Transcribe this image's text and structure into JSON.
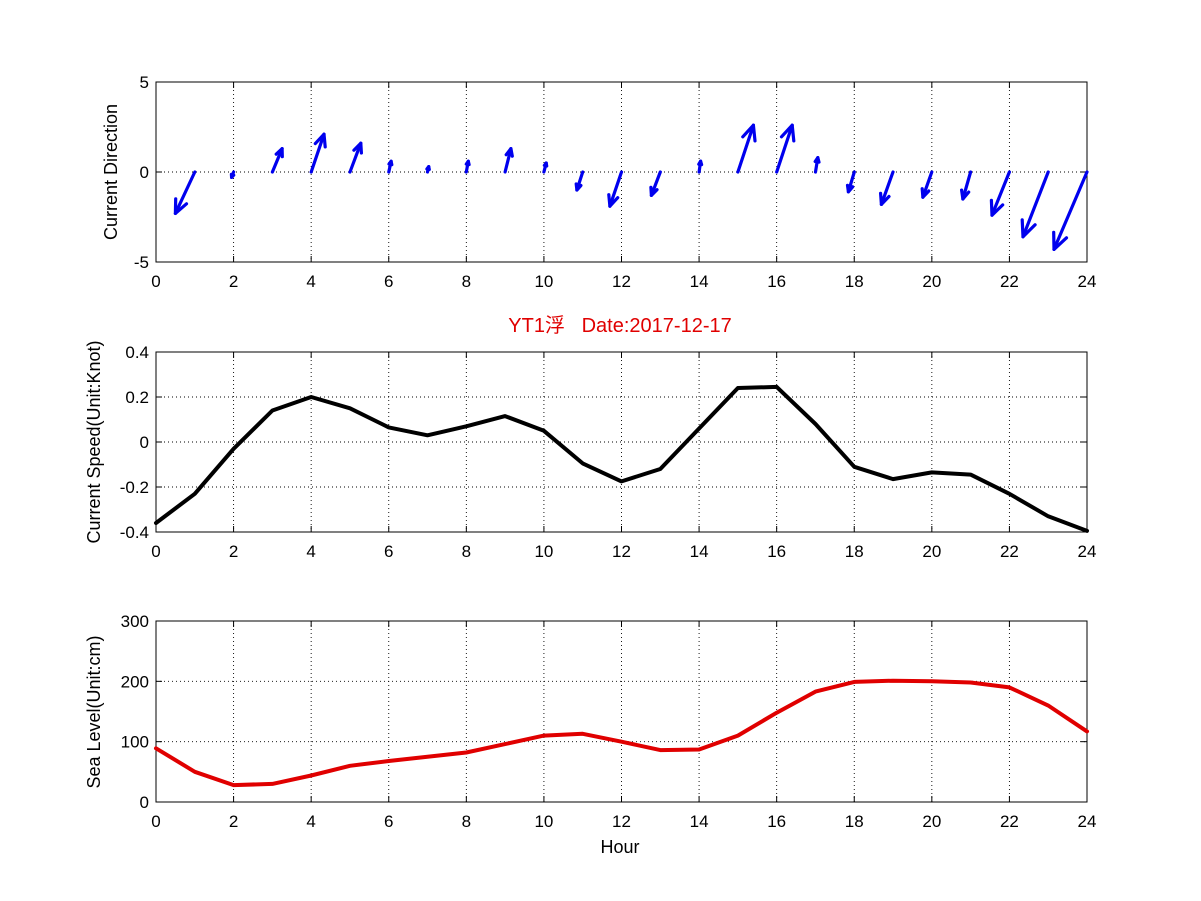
{
  "figure": {
    "background": "#ffffff",
    "title": "YT1浮   Date:2017-12-17",
    "title_color": "#e00000"
  },
  "chart_data": [
    {
      "id": "direction",
      "type": "quiver",
      "ylabel": "Current Direction",
      "xlabel": "",
      "xlim": [
        0,
        24
      ],
      "ylim": [
        -5,
        5
      ],
      "xticks": [
        0,
        2,
        4,
        6,
        8,
        10,
        12,
        14,
        16,
        18,
        20,
        22,
        24
      ],
      "yticks": [
        -5,
        0,
        5
      ],
      "grid": true,
      "color": "#0000ee",
      "x": [
        0,
        1,
        2,
        3,
        4,
        5,
        6,
        7,
        8,
        9,
        10,
        11,
        12,
        13,
        14,
        15,
        16,
        17,
        18,
        19,
        20,
        21,
        22,
        23,
        24
      ],
      "u": [
        0,
        -0.5,
        -0.05,
        0.25,
        0.33,
        0.28,
        0.06,
        0.03,
        0.05,
        0.15,
        0.06,
        -0.15,
        -0.3,
        -0.23,
        0.04,
        0.4,
        0.4,
        0.06,
        -0.15,
        -0.3,
        -0.23,
        -0.2,
        -0.45,
        -0.65,
        -0.85
      ],
      "v": [
        0,
        -2.3,
        -0.3,
        1.3,
        2.1,
        1.6,
        0.6,
        0.3,
        0.6,
        1.3,
        0.5,
        -1.0,
        -1.9,
        -1.3,
        0.6,
        2.6,
        2.6,
        0.8,
        -1.1,
        -1.8,
        -1.4,
        -1.5,
        -2.4,
        -3.6,
        -4.3
      ]
    },
    {
      "id": "speed",
      "type": "line",
      "ylabel": "Current Speed(Unit:Knot)",
      "xlabel": "",
      "xlim": [
        0,
        24
      ],
      "ylim": [
        -0.4,
        0.4
      ],
      "xticks": [
        0,
        2,
        4,
        6,
        8,
        10,
        12,
        14,
        16,
        18,
        20,
        22,
        24
      ],
      "yticks": [
        -0.4,
        -0.2,
        0,
        0.2,
        0.4
      ],
      "grid": true,
      "color": "#000000",
      "x": [
        0,
        1,
        2,
        3,
        4,
        5,
        6,
        7,
        8,
        9,
        10,
        11,
        12,
        13,
        14,
        15,
        16,
        17,
        18,
        19,
        20,
        21,
        22,
        23,
        24
      ],
      "y": [
        -0.36,
        -0.23,
        -0.03,
        0.14,
        0.2,
        0.15,
        0.065,
        0.03,
        0.07,
        0.115,
        0.05,
        -0.095,
        -0.175,
        -0.12,
        0.06,
        0.24,
        0.245,
        0.08,
        -0.11,
        -0.165,
        -0.135,
        -0.145,
        -0.23,
        -0.33,
        -0.395
      ]
    },
    {
      "id": "sealevel",
      "type": "line",
      "ylabel": "Sea Level(Unit:cm)",
      "xlabel": "Hour",
      "xlim": [
        0,
        24
      ],
      "ylim": [
        0,
        300
      ],
      "xticks": [
        0,
        2,
        4,
        6,
        8,
        10,
        12,
        14,
        16,
        18,
        20,
        22,
        24
      ],
      "yticks": [
        0,
        100,
        200,
        300
      ],
      "grid": true,
      "color": "#e00000",
      "x": [
        0,
        1,
        2,
        3,
        4,
        5,
        6,
        7,
        8,
        9,
        10,
        11,
        12,
        13,
        14,
        15,
        16,
        17,
        18,
        19,
        20,
        21,
        22,
        23,
        24
      ],
      "y": [
        89,
        50,
        28,
        30,
        44,
        60,
        68,
        75,
        82,
        96,
        110,
        113,
        100,
        86,
        87,
        110,
        148,
        183,
        199,
        201,
        200,
        198,
        190,
        160,
        117
      ]
    }
  ]
}
